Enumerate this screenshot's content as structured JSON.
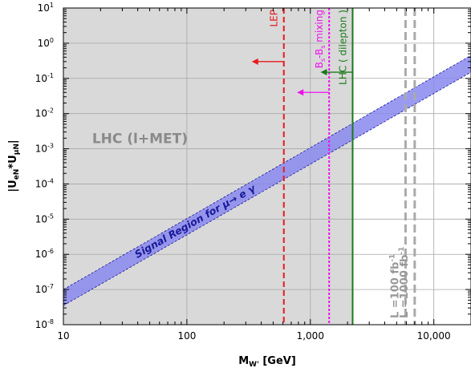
{
  "chart_data": {
    "type": "line",
    "xscale": "log",
    "yscale": "log",
    "xlim": [
      10,
      20000
    ],
    "ylim": [
      1e-08,
      10
    ],
    "grid": true,
    "xlabel": {
      "base": "M",
      "sub": "W'",
      "unit": " [GeV]"
    },
    "ylabel": {
      "p1": "|U",
      "s1": "eN",
      "p2": "*U",
      "s2": "μN",
      "p3": "|"
    },
    "xticks": [
      {
        "value": 10,
        "label": "10"
      },
      {
        "value": 100,
        "label": "100"
      },
      {
        "value": 1000,
        "label": "1,000"
      },
      {
        "value": 10000,
        "label": "10,000"
      }
    ],
    "yticks": [
      {
        "value": 10,
        "exp": "1"
      },
      {
        "value": 1,
        "exp": "0"
      },
      {
        "value": 0.1,
        "exp": "-1"
      },
      {
        "value": 0.01,
        "exp": "-2"
      },
      {
        "value": 0.001,
        "exp": "-3"
      },
      {
        "value": 0.0001,
        "exp": "-4"
      },
      {
        "value": 1e-05,
        "exp": "-5"
      },
      {
        "value": 1e-06,
        "exp": "-6"
      },
      {
        "value": 1e-07,
        "exp": "-7"
      },
      {
        "value": 1e-08,
        "exp": "-8"
      }
    ],
    "excluded_region": {
      "x_max": 2200,
      "color": "#d9d9d9",
      "label": "LHC (l+MET)",
      "label_at": [
        30,
        0.002
      ]
    },
    "band": {
      "label": "Signal Region for μ→ e γ",
      "color": "#8888ee",
      "edge_color": "#1a1a9a",
      "lower": [
        [
          10,
          3.5e-08
        ],
        [
          20000,
          0.15
        ]
      ],
      "upper": [
        [
          10,
          1e-07
        ],
        [
          20000,
          0.45
        ]
      ]
    },
    "limits": [
      {
        "name": "LEP",
        "x": 610,
        "color": "#e8191c",
        "style": "dashed",
        "arrow_y": 0.3
      },
      {
        "name_parts": [
          "B",
          "s",
          "-B",
          "s",
          " mixing"
        ],
        "x": 1420,
        "color": "#ee10ee",
        "style": "dotted",
        "arrow_y": 0.04
      },
      {
        "name": "LHC ( dilepton )",
        "x": 2200,
        "color": "#1a7a1a",
        "style": "solid",
        "arrow_y": 0.15
      }
    ],
    "luminosity_lines": [
      {
        "label": "L =100 fb",
        "sup": "-1",
        "x": 5900,
        "color": "#aaaaaa"
      },
      {
        "label": "L =1000 fb",
        "sup": "-1",
        "x": 7000,
        "color": "#aaaaaa"
      }
    ]
  }
}
